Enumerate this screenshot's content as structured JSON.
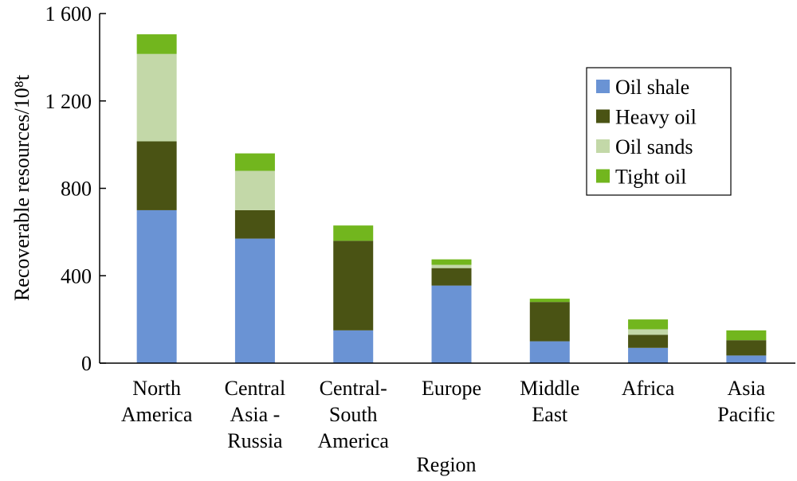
{
  "chart_data": {
    "type": "stacked_bar",
    "xlabel": "Region",
    "ylabel": "Recoverable resources/10⁸t",
    "categories": [
      [
        "North",
        "America"
      ],
      [
        "Central",
        "Asia -",
        "Russia"
      ],
      [
        "Central-",
        "South",
        "America"
      ],
      [
        "Europe"
      ],
      [
        "Middle",
        "East"
      ],
      [
        "Africa"
      ],
      [
        "Asia",
        "Pacific"
      ]
    ],
    "series": [
      {
        "name": "Oil shale",
        "color": "#6a93d4",
        "values": [
          700,
          570,
          150,
          355,
          100,
          70,
          35
        ]
      },
      {
        "name": "Heavy oil",
        "color": "#4a5314",
        "values": [
          315,
          130,
          410,
          80,
          180,
          60,
          70
        ]
      },
      {
        "name": "Oil sands",
        "color": "#c3d8a8",
        "values": [
          400,
          180,
          0,
          15,
          0,
          25,
          0
        ]
      },
      {
        "name": "Tight oil",
        "color": "#72b61e",
        "values": [
          90,
          80,
          70,
          25,
          15,
          45,
          45
        ]
      }
    ],
    "ylim": [
      0,
      1600
    ],
    "yticks": [
      0,
      400,
      800,
      {
        "value": 1200,
        "label": "1 200"
      },
      {
        "value": 1600,
        "label": "1 600"
      }
    ],
    "legend": "upper right"
  }
}
